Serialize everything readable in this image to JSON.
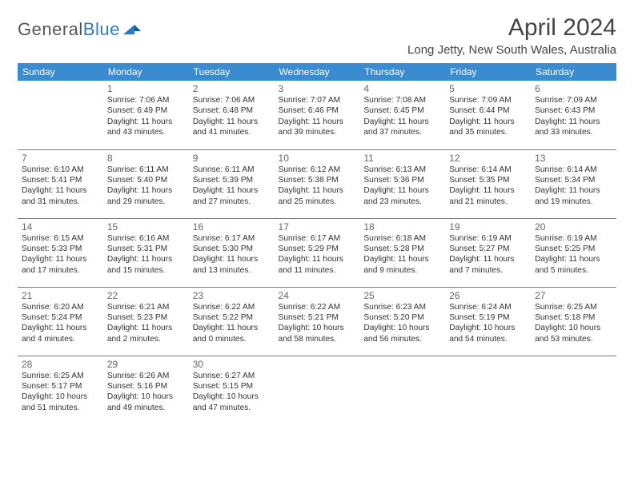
{
  "logo": {
    "word1": "General",
    "word2": "Blue"
  },
  "title": "April 2024",
  "location": "Long Jetty, New South Wales, Australia",
  "colors": {
    "header_bg": "#3b8bd0",
    "header_fg": "#ffffff",
    "accent": "#2b7cc0",
    "text": "#333333"
  },
  "day_labels": [
    "Sunday",
    "Monday",
    "Tuesday",
    "Wednesday",
    "Thursday",
    "Friday",
    "Saturday"
  ],
  "weeks": [
    [
      null,
      {
        "n": "1",
        "sunrise": "7:06 AM",
        "sunset": "6:49 PM",
        "dl": "11 hours and 43 minutes."
      },
      {
        "n": "2",
        "sunrise": "7:06 AM",
        "sunset": "6:48 PM",
        "dl": "11 hours and 41 minutes."
      },
      {
        "n": "3",
        "sunrise": "7:07 AM",
        "sunset": "6:46 PM",
        "dl": "11 hours and 39 minutes."
      },
      {
        "n": "4",
        "sunrise": "7:08 AM",
        "sunset": "6:45 PM",
        "dl": "11 hours and 37 minutes."
      },
      {
        "n": "5",
        "sunrise": "7:09 AM",
        "sunset": "6:44 PM",
        "dl": "11 hours and 35 minutes."
      },
      {
        "n": "6",
        "sunrise": "7:09 AM",
        "sunset": "6:43 PM",
        "dl": "11 hours and 33 minutes."
      }
    ],
    [
      {
        "n": "7",
        "sunrise": "6:10 AM",
        "sunset": "5:41 PM",
        "dl": "11 hours and 31 minutes."
      },
      {
        "n": "8",
        "sunrise": "6:11 AM",
        "sunset": "5:40 PM",
        "dl": "11 hours and 29 minutes."
      },
      {
        "n": "9",
        "sunrise": "6:11 AM",
        "sunset": "5:39 PM",
        "dl": "11 hours and 27 minutes."
      },
      {
        "n": "10",
        "sunrise": "6:12 AM",
        "sunset": "5:38 PM",
        "dl": "11 hours and 25 minutes."
      },
      {
        "n": "11",
        "sunrise": "6:13 AM",
        "sunset": "5:36 PM",
        "dl": "11 hours and 23 minutes."
      },
      {
        "n": "12",
        "sunrise": "6:14 AM",
        "sunset": "5:35 PM",
        "dl": "11 hours and 21 minutes."
      },
      {
        "n": "13",
        "sunrise": "6:14 AM",
        "sunset": "5:34 PM",
        "dl": "11 hours and 19 minutes."
      }
    ],
    [
      {
        "n": "14",
        "sunrise": "6:15 AM",
        "sunset": "5:33 PM",
        "dl": "11 hours and 17 minutes."
      },
      {
        "n": "15",
        "sunrise": "6:16 AM",
        "sunset": "5:31 PM",
        "dl": "11 hours and 15 minutes."
      },
      {
        "n": "16",
        "sunrise": "6:17 AM",
        "sunset": "5:30 PM",
        "dl": "11 hours and 13 minutes."
      },
      {
        "n": "17",
        "sunrise": "6:17 AM",
        "sunset": "5:29 PM",
        "dl": "11 hours and 11 minutes."
      },
      {
        "n": "18",
        "sunrise": "6:18 AM",
        "sunset": "5:28 PM",
        "dl": "11 hours and 9 minutes."
      },
      {
        "n": "19",
        "sunrise": "6:19 AM",
        "sunset": "5:27 PM",
        "dl": "11 hours and 7 minutes."
      },
      {
        "n": "20",
        "sunrise": "6:19 AM",
        "sunset": "5:25 PM",
        "dl": "11 hours and 5 minutes."
      }
    ],
    [
      {
        "n": "21",
        "sunrise": "6:20 AM",
        "sunset": "5:24 PM",
        "dl": "11 hours and 4 minutes."
      },
      {
        "n": "22",
        "sunrise": "6:21 AM",
        "sunset": "5:23 PM",
        "dl": "11 hours and 2 minutes."
      },
      {
        "n": "23",
        "sunrise": "6:22 AM",
        "sunset": "5:22 PM",
        "dl": "11 hours and 0 minutes."
      },
      {
        "n": "24",
        "sunrise": "6:22 AM",
        "sunset": "5:21 PM",
        "dl": "10 hours and 58 minutes."
      },
      {
        "n": "25",
        "sunrise": "6:23 AM",
        "sunset": "5:20 PM",
        "dl": "10 hours and 56 minutes."
      },
      {
        "n": "26",
        "sunrise": "6:24 AM",
        "sunset": "5:19 PM",
        "dl": "10 hours and 54 minutes."
      },
      {
        "n": "27",
        "sunrise": "6:25 AM",
        "sunset": "5:18 PM",
        "dl": "10 hours and 53 minutes."
      }
    ],
    [
      {
        "n": "28",
        "sunrise": "6:25 AM",
        "sunset": "5:17 PM",
        "dl": "10 hours and 51 minutes."
      },
      {
        "n": "29",
        "sunrise": "6:26 AM",
        "sunset": "5:16 PM",
        "dl": "10 hours and 49 minutes."
      },
      {
        "n": "30",
        "sunrise": "6:27 AM",
        "sunset": "5:15 PM",
        "dl": "10 hours and 47 minutes."
      },
      null,
      null,
      null,
      null
    ]
  ],
  "labels": {
    "sunrise": "Sunrise:",
    "sunset": "Sunset:",
    "daylight": "Daylight:"
  }
}
